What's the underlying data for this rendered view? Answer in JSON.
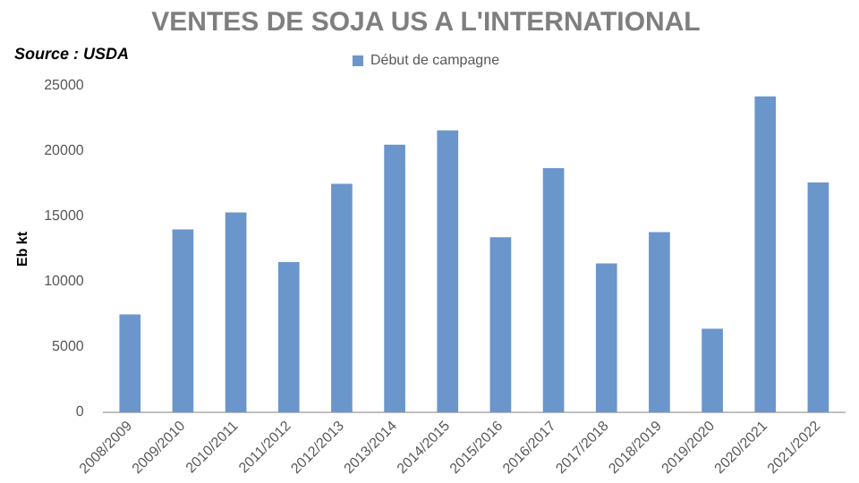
{
  "chart_data": {
    "type": "bar",
    "title": "VENTES DE SOJA US A L'INTERNATIONAL",
    "ylabel": "Eb kt",
    "annotations": [
      "Source : USDA"
    ],
    "categories": [
      "2008/2009",
      "2009/2010",
      "2010/2011",
      "2011/2012",
      "2012/2013",
      "2013/2014",
      "2014/2015",
      "2015/2016",
      "2016/2017",
      "2017/2018",
      "2018/2019",
      "2019/2020",
      "2020/2021",
      "2021/2022"
    ],
    "series": [
      {
        "name": "Début de campagne",
        "color": "#6a96cc",
        "values": [
          7500,
          14000,
          15300,
          11500,
          17500,
          20500,
          21600,
          13400,
          18700,
          11400,
          13800,
          6400,
          24200,
          17600
        ]
      }
    ],
    "ylim": [
      0,
      25000
    ],
    "yticks": [
      0,
      5000,
      10000,
      15000,
      20000,
      25000
    ],
    "grid": false,
    "legend": "top"
  }
}
